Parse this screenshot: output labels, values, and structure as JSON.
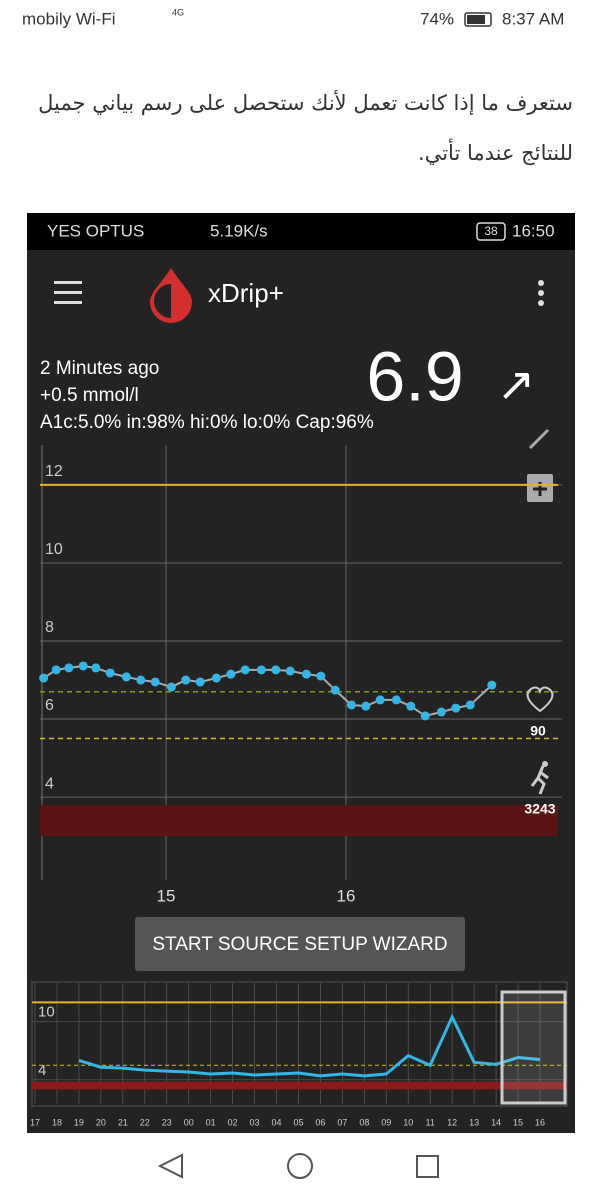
{
  "status_bar": {
    "carrier": "mobily Wi-Fi",
    "network": "4G",
    "battery": "74%",
    "time": "8:37 AM"
  },
  "article": {
    "text": "ستعرف ما إذا كانت تعمل لأنك ستحصل على رسم بياني جميل للنتائج عندما تأتي."
  },
  "screenshot": {
    "status_bar": {
      "carrier": "YES OPTUS",
      "speed": "5.19K/s",
      "battery": "38",
      "time": "16:50"
    },
    "app_bar": {
      "title": "xDrip+"
    },
    "reading": {
      "age": "2 Minutes ago",
      "delta": "+0.5 mmol/l",
      "stats": "A1c:5.0% in:98% hi:0% lo:0% Cap:96%",
      "value": "6.9",
      "trend": "↗"
    },
    "side_stats": {
      "heart_rate": "90",
      "steps": "3243"
    },
    "chart": {
      "type": "scatter",
      "x": [
        14.32,
        14.39,
        14.46,
        14.54,
        14.61,
        14.69,
        14.78,
        14.86,
        14.94,
        15.03,
        15.11,
        15.19,
        15.28,
        15.36,
        15.44,
        15.53,
        15.61,
        15.69,
        15.78,
        15.86,
        15.94,
        16.03,
        16.11,
        16.19,
        16.28,
        16.36,
        16.44,
        16.53,
        16.61,
        16.69,
        16.81
      ],
      "values": [
        7.05,
        7.26,
        7.31,
        7.36,
        7.31,
        7.18,
        7.08,
        7.0,
        6.95,
        6.82,
        7.0,
        6.95,
        7.05,
        7.15,
        7.26,
        7.26,
        7.26,
        7.23,
        7.15,
        7.1,
        6.74,
        6.36,
        6.33,
        6.49,
        6.49,
        6.33,
        6.08,
        6.18,
        6.28,
        6.36,
        6.87
      ],
      "color": "#33b5e5",
      "xlim": [
        14.3,
        17.2
      ],
      "ylim": [
        1.9,
        13.1
      ],
      "xticks": [
        15,
        16
      ],
      "yticks": [
        4,
        6,
        8,
        10,
        12
      ],
      "high_line": 12,
      "target_line": 6.7,
      "low_line": 5.5,
      "low_band": [
        3.0,
        3.8
      ]
    },
    "button": "START SOURCE SETUP WIZARD",
    "mini_chart": {
      "type": "line",
      "categories": [
        "17",
        "18",
        "19",
        "20",
        "21",
        "22",
        "23",
        "00",
        "01",
        "02",
        "03",
        "04",
        "05",
        "06",
        "07",
        "08",
        "09",
        "10",
        "11",
        "12",
        "13",
        "14",
        "15",
        "16"
      ],
      "values": [
        null,
        null,
        6.0,
        5.3,
        5.2,
        5.0,
        4.9,
        4.8,
        4.6,
        4.7,
        4.5,
        4.6,
        4.7,
        4.4,
        4.6,
        4.4,
        4.6,
        6.5,
        5.5,
        10.5,
        5.8,
        5.6,
        6.3,
        6.1
      ],
      "color": "#33b5e5",
      "ylim": [
        1.6,
        13.8
      ],
      "yticks": [
        4,
        10
      ]
    }
  }
}
